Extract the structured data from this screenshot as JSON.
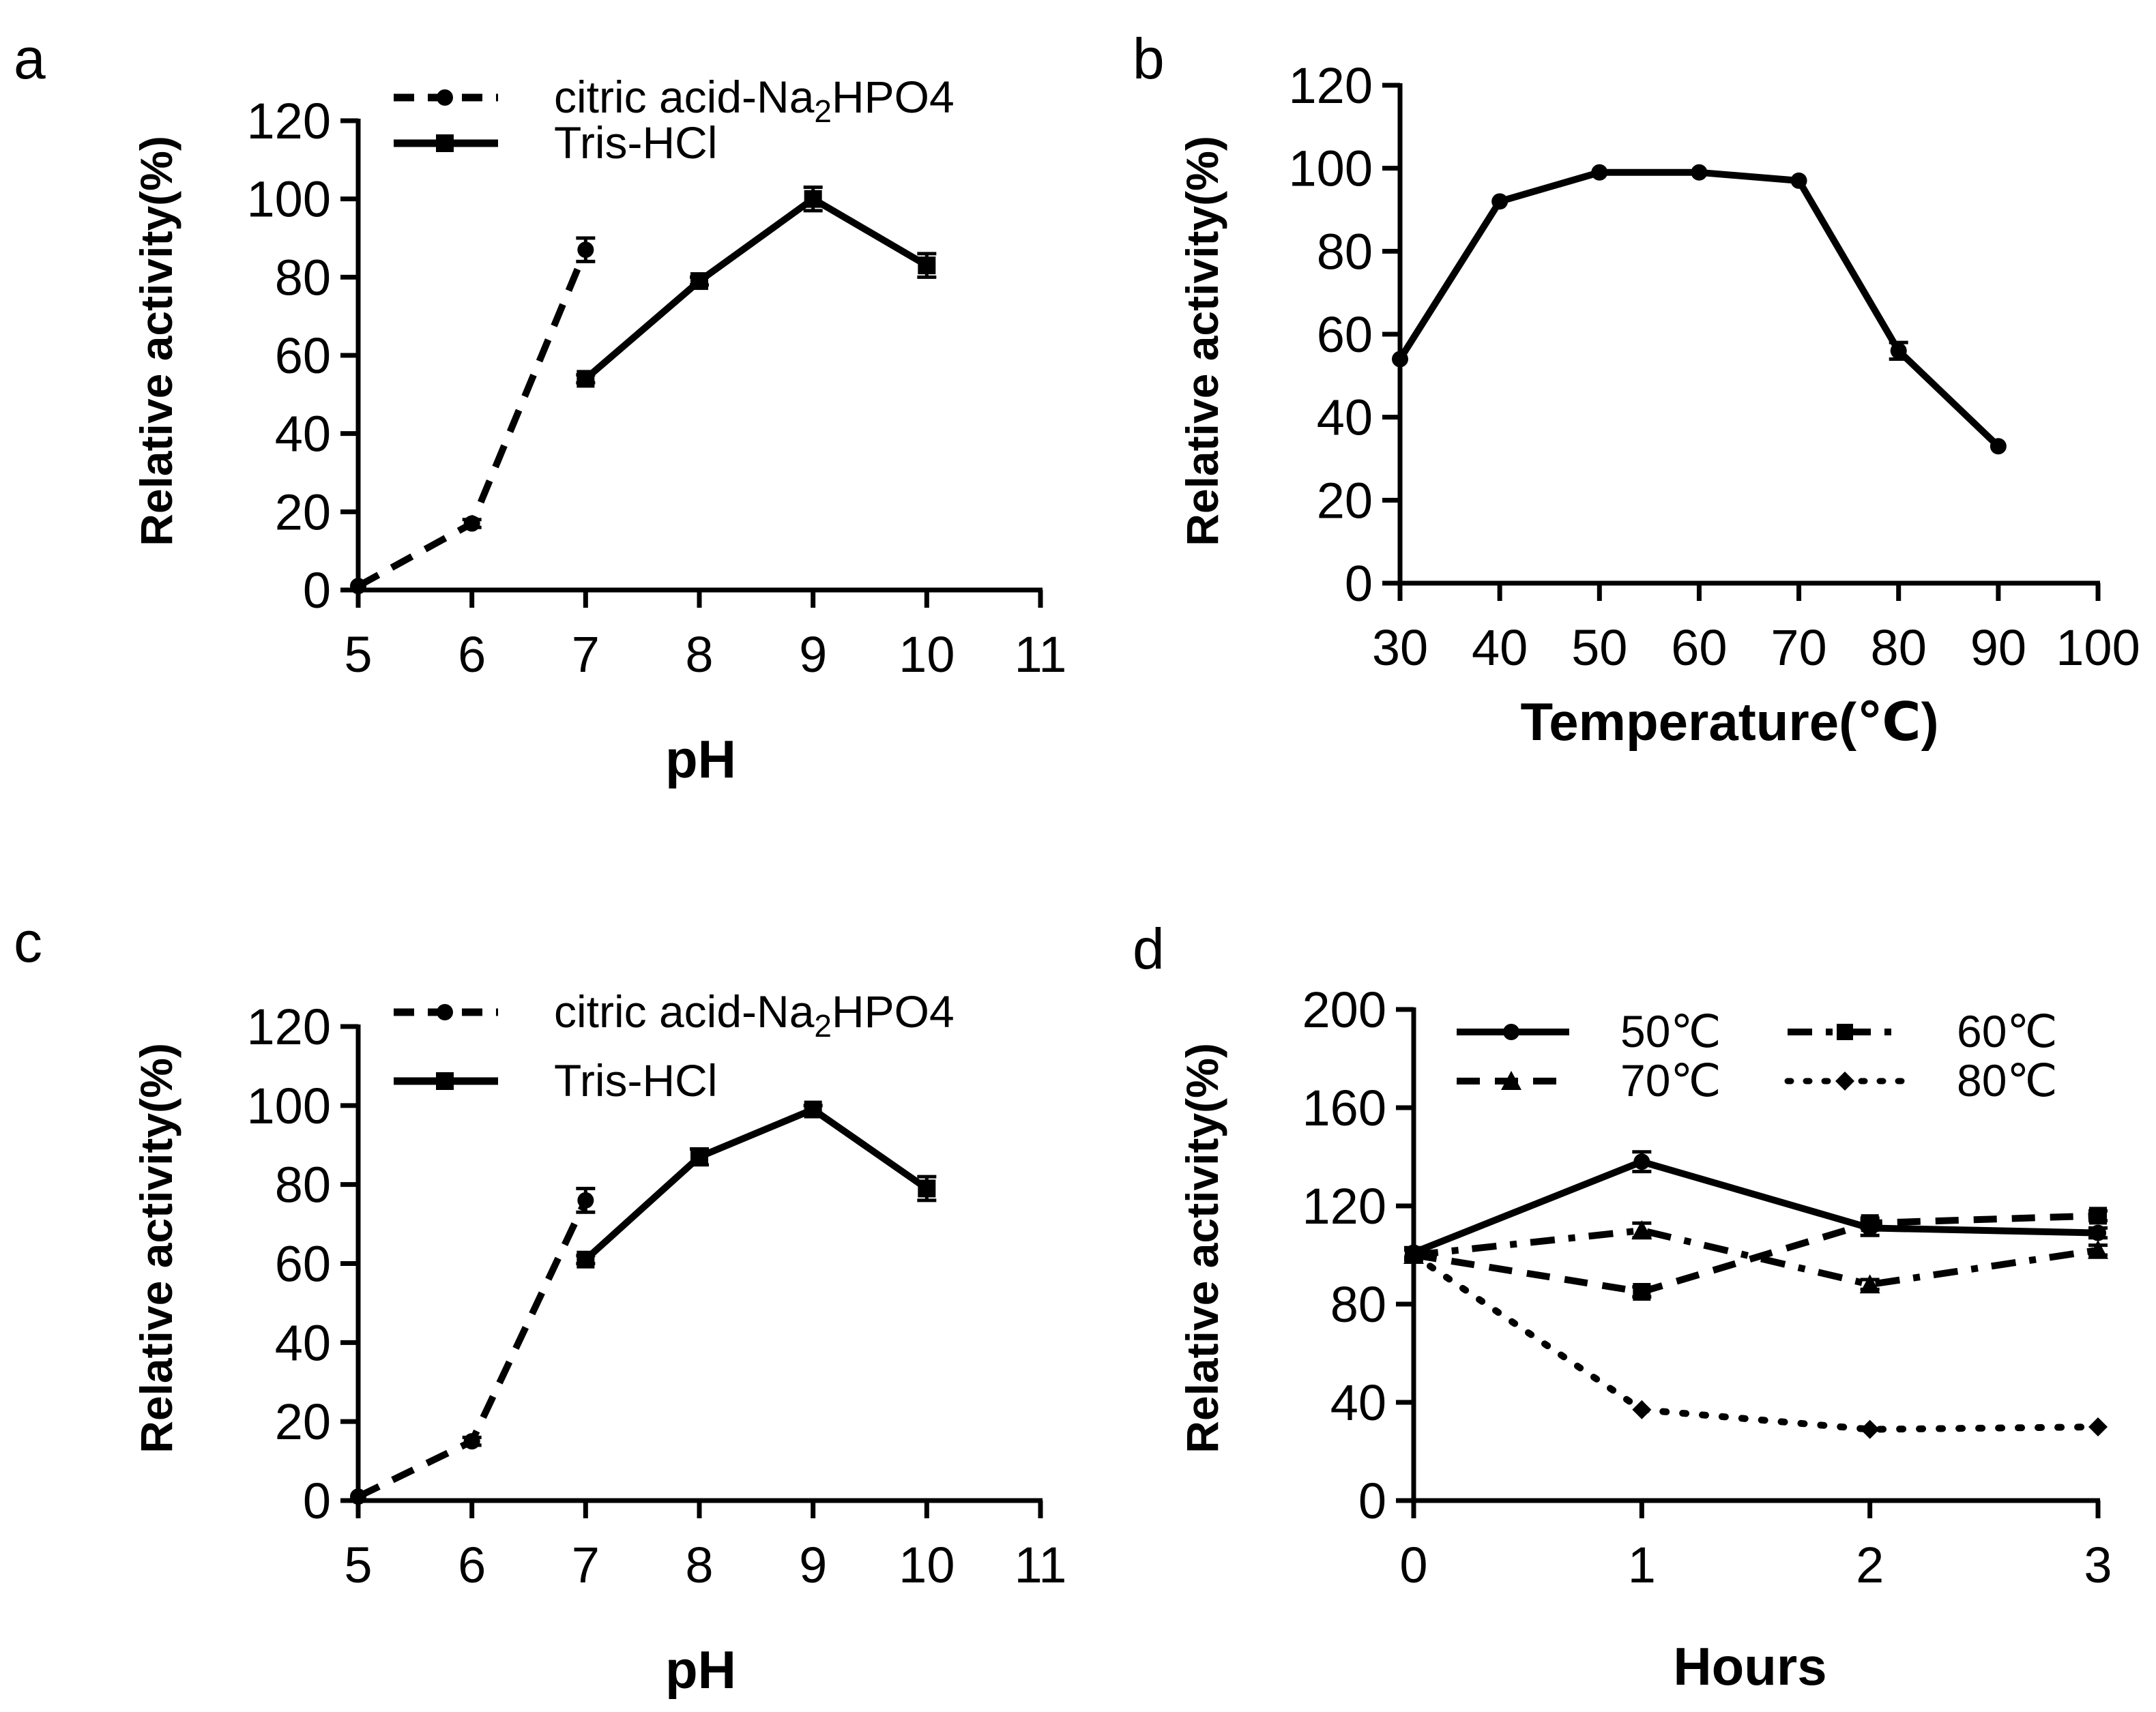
{
  "figure": {
    "background": "#ffffff",
    "line_color": "#000000"
  },
  "chart_data": [
    {
      "panel": "a",
      "type": "line",
      "title": "",
      "xlabel": "pH",
      "ylabel": "Relative activity(%)",
      "xlim": [
        5,
        11
      ],
      "ylim": [
        0,
        120
      ],
      "xticks": [
        5,
        6,
        7,
        8,
        9,
        10,
        11
      ],
      "yticks": [
        0,
        20,
        40,
        60,
        80,
        100,
        120
      ],
      "legend": "top-left",
      "series": [
        {
          "name": "citric acid-Na2HPO4",
          "legend_main": "citric acid-Na",
          "legend_sub": "2",
          "legend_tail": "HPO4",
          "style": "dashed",
          "marker": "circle",
          "x": [
            5,
            6,
            7
          ],
          "y": [
            1,
            17,
            87
          ],
          "err": [
            0,
            1,
            3
          ]
        },
        {
          "name": "Tris-HCl",
          "legend_main": "Tris-HCl",
          "legend_sub": "",
          "legend_tail": "",
          "style": "solid",
          "marker": "square",
          "x": [
            7,
            8,
            9,
            10
          ],
          "y": [
            54,
            79,
            100,
            83
          ],
          "err": [
            1,
            1,
            3,
            3
          ]
        }
      ]
    },
    {
      "panel": "b",
      "type": "line",
      "title": "",
      "xlabel": "Temperature(℃)",
      "ylabel": "Relative activity(%)",
      "xlim": [
        30,
        100
      ],
      "ylim": [
        0,
        120
      ],
      "xticks": [
        30,
        40,
        50,
        60,
        70,
        80,
        90,
        100
      ],
      "yticks": [
        0,
        20,
        40,
        60,
        80,
        100,
        120
      ],
      "legend": "none",
      "series": [
        {
          "name": "activity",
          "style": "solid",
          "marker": "circle",
          "x": [
            30,
            40,
            50,
            60,
            70,
            80,
            90
          ],
          "y": [
            54,
            92,
            99,
            99,
            97,
            56,
            33
          ],
          "err": [
            0,
            0,
            0,
            0,
            0,
            2,
            0
          ]
        }
      ]
    },
    {
      "panel": "c",
      "type": "line",
      "title": "",
      "xlabel": "pH",
      "ylabel": "Relative activity(%)",
      "xlim": [
        5,
        11
      ],
      "ylim": [
        0,
        120
      ],
      "xticks": [
        5,
        6,
        7,
        8,
        9,
        10,
        11
      ],
      "yticks": [
        0,
        20,
        40,
        60,
        80,
        100,
        120
      ],
      "legend": "top-left",
      "series": [
        {
          "name": "citric acid-Na2HPO4",
          "legend_main": "citric acid-Na",
          "legend_sub": "2",
          "legend_tail": "HPO4",
          "style": "dashed",
          "marker": "circle",
          "x": [
            5,
            6,
            7
          ],
          "y": [
            1,
            15,
            76
          ],
          "err": [
            0,
            1,
            3
          ]
        },
        {
          "name": "Tris-HCl",
          "legend_main": "Tris-HCl",
          "legend_sub": "",
          "legend_tail": "",
          "style": "solid",
          "marker": "square",
          "x": [
            7,
            8,
            9,
            10
          ],
          "y": [
            61,
            87,
            99,
            79
          ],
          "err": [
            1,
            2,
            1,
            3
          ]
        }
      ]
    },
    {
      "panel": "d",
      "type": "line",
      "title": "",
      "xlabel": "Hours",
      "ylabel": "Relative activity(%)",
      "xlim": [
        0,
        3
      ],
      "ylim": [
        0,
        200
      ],
      "xticks": [
        0,
        1,
        2,
        3
      ],
      "yticks": [
        0,
        40,
        80,
        120,
        160,
        200
      ],
      "legend": "top",
      "series": [
        {
          "name": "50℃",
          "style": "solid",
          "marker": "circle",
          "x": [
            0,
            1,
            2,
            3
          ],
          "y": [
            101,
            138,
            111,
            109
          ],
          "err": [
            2,
            4,
            3,
            2
          ]
        },
        {
          "name": "60℃",
          "style": "dashed",
          "marker": "square",
          "x": [
            0,
            1,
            2,
            3
          ],
          "y": [
            100,
            85,
            113,
            116
          ],
          "err": [
            2,
            2,
            2,
            2
          ]
        },
        {
          "name": "70℃",
          "style": "dashdot",
          "marker": "triangle",
          "x": [
            0,
            1,
            2,
            3
          ],
          "y": [
            100,
            110,
            88,
            102
          ],
          "err": [
            2,
            3,
            2,
            2
          ]
        },
        {
          "name": "80℃",
          "style": "dotted",
          "marker": "diamond",
          "x": [
            0,
            1,
            2,
            3
          ],
          "y": [
            100,
            37,
            29,
            30
          ],
          "err": [
            0,
            0,
            0,
            0
          ]
        }
      ]
    }
  ]
}
